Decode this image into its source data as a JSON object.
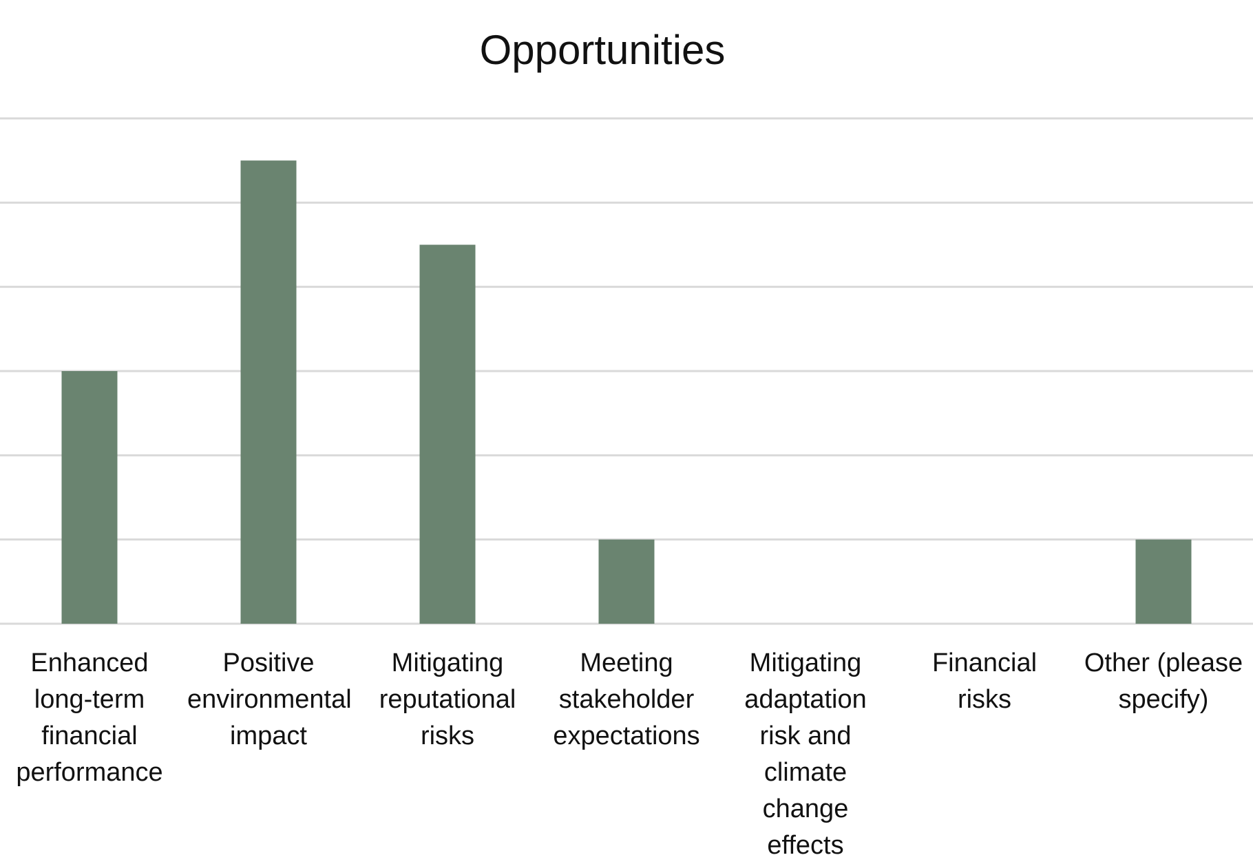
{
  "chart_data": {
    "type": "bar",
    "title": "Opportunities",
    "xlabel": "",
    "ylabel": "",
    "categories": [
      "Enhanced long-term financial performance",
      "Positive environmental impact",
      "Mitigating reputational risks",
      "Meeting stakeholder expectations",
      "Mitigating adaptation risk and climate change effects",
      "Financial risks",
      "Other (please specify)"
    ],
    "values": [
      3,
      5.5,
      4.5,
      1,
      0,
      0,
      1
    ],
    "ylim": [
      0,
      6
    ],
    "grid": true,
    "y_tick_labels_shown": false,
    "bar_color": "#6a8470",
    "grid_color": "#d9d9d9"
  }
}
